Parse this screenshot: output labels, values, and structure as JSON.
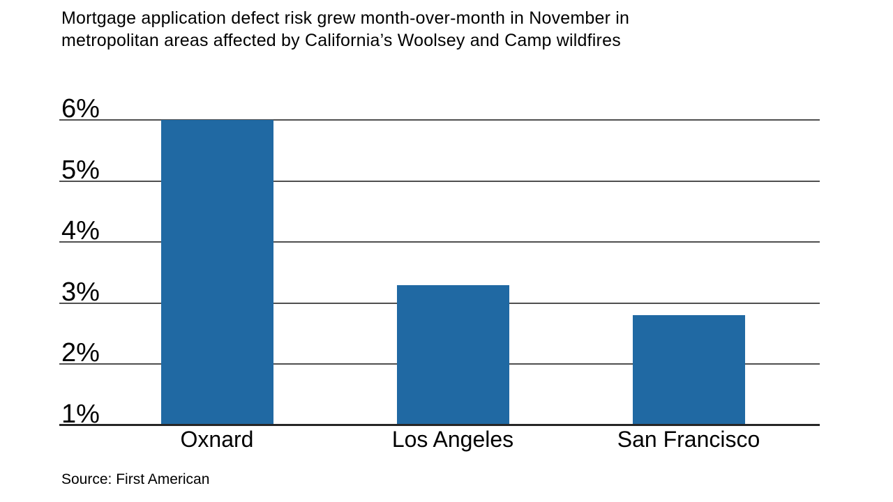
{
  "title": {
    "line1": "Mortgage application defect risk grew month-over-month in November in",
    "line2": "metropolitan areas affected by California’s Woolsey and Camp wildfires"
  },
  "chart_data": {
    "type": "bar",
    "title": "Mortgage application defect risk grew month-over-month in November in metropolitan areas affected by California’s Woolsey and Camp wildfires",
    "categories": [
      "Oxnard",
      "Los Angeles",
      "San Francisco"
    ],
    "values": [
      6.0,
      3.3,
      2.8
    ],
    "unit": "%",
    "xlabel": "",
    "ylabel": "",
    "ylim": [
      1,
      6
    ],
    "yticks": [
      1,
      2,
      3,
      4,
      5,
      6
    ],
    "ytick_labels": [
      "1%",
      "2%",
      "3%",
      "4%",
      "5%",
      "6%"
    ],
    "grid": true,
    "legend": "none",
    "bar_color": "#2069a3",
    "gridline_color": "#4f4f4f",
    "axis_color": "#262626",
    "text_color": "#000000",
    "source": "Source: First American"
  }
}
